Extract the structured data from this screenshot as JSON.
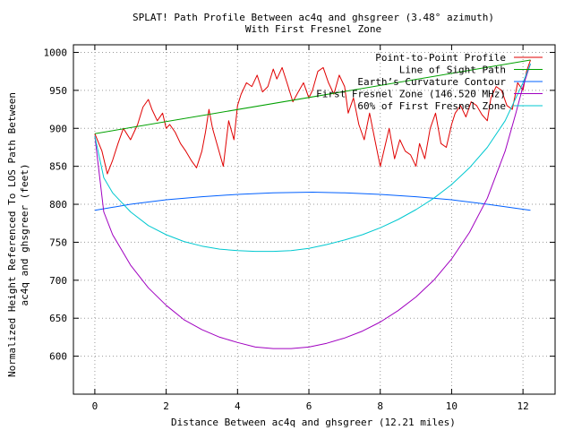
{
  "chart_data": {
    "type": "line",
    "title": "SPLAT! Path Profile Between ac4q and ghsgreer (3.48° azimuth)",
    "subtitle": "With First Fresnel Zone",
    "xlabel": "Distance Between ac4q and ghsgreer (12.21 miles)",
    "ylabel": "Normalized Height Referenced To LOS Path Between",
    "ylabel2": "ac4q and ghsgreer (feet)",
    "xlim": [
      -0.6,
      12.9
    ],
    "ylim": [
      550,
      1010
    ],
    "x_ticks": [
      0,
      2,
      4,
      6,
      8,
      10,
      12
    ],
    "y_ticks": [
      600,
      650,
      700,
      750,
      800,
      850,
      900,
      950,
      1000
    ],
    "grid": true,
    "legend_position": "top-right",
    "series": [
      {
        "name": "Point-to-Point Profile",
        "color": "#e00000",
        "x": [
          0.0,
          0.2,
          0.35,
          0.5,
          0.65,
          0.8,
          1.0,
          1.2,
          1.35,
          1.5,
          1.6,
          1.75,
          1.9,
          2.0,
          2.1,
          2.25,
          2.4,
          2.55,
          2.7,
          2.85,
          3.0,
          3.1,
          3.2,
          3.3,
          3.45,
          3.6,
          3.75,
          3.9,
          4.0,
          4.1,
          4.25,
          4.4,
          4.55,
          4.7,
          4.85,
          5.0,
          5.1,
          5.25,
          5.4,
          5.55,
          5.7,
          5.85,
          6.0,
          6.1,
          6.25,
          6.4,
          6.55,
          6.7,
          6.85,
          7.0,
          7.1,
          7.25,
          7.4,
          7.55,
          7.7,
          7.85,
          8.0,
          8.1,
          8.25,
          8.4,
          8.55,
          8.7,
          8.85,
          9.0,
          9.1,
          9.25,
          9.4,
          9.55,
          9.7,
          9.85,
          10.0,
          10.1,
          10.25,
          10.4,
          10.55,
          10.7,
          10.85,
          11.0,
          11.1,
          11.25,
          11.4,
          11.55,
          11.7,
          11.85,
          12.0,
          12.1,
          12.21
        ],
        "values": [
          893,
          870,
          840,
          858,
          880,
          900,
          885,
          905,
          928,
          938,
          925,
          910,
          920,
          900,
          905,
          895,
          880,
          870,
          858,
          848,
          870,
          895,
          925,
          900,
          875,
          850,
          910,
          885,
          930,
          945,
          960,
          955,
          970,
          948,
          955,
          978,
          965,
          980,
          958,
          935,
          948,
          960,
          940,
          950,
          975,
          980,
          960,
          945,
          970,
          955,
          920,
          940,
          905,
          885,
          920,
          885,
          850,
          870,
          900,
          860,
          885,
          870,
          865,
          850,
          880,
          860,
          900,
          920,
          880,
          875,
          905,
          920,
          930,
          915,
          935,
          930,
          918,
          910,
          940,
          955,
          950,
          930,
          925,
          960,
          950,
          975,
          990
        ]
      },
      {
        "name": "Line of Sight Path",
        "color": "#00a000",
        "x": [
          0.0,
          12.21
        ],
        "values": [
          893,
          990
        ]
      },
      {
        "name": "Earth’s Curvature Contour",
        "color": "#0060ff",
        "x": [
          0.0,
          1.0,
          2.0,
          3.0,
          4.0,
          5.0,
          6.1,
          7.0,
          8.0,
          9.0,
          10.0,
          11.0,
          12.21
        ],
        "values": [
          792,
          800,
          806,
          810,
          813,
          815,
          816,
          815,
          813,
          810,
          806,
          800,
          792
        ]
      },
      {
        "name": "First Fresnel Zone (146.520 MHz)",
        "color": "#a000c0",
        "x": [
          0.0,
          0.25,
          0.5,
          1.0,
          1.5,
          2.0,
          2.5,
          3.0,
          3.5,
          4.0,
          4.5,
          5.0,
          5.5,
          6.0,
          6.5,
          7.0,
          7.5,
          8.0,
          8.5,
          9.0,
          9.5,
          10.0,
          10.5,
          11.0,
          11.5,
          11.8,
          12.0,
          12.21
        ],
        "values": [
          890,
          790,
          760,
          720,
          690,
          667,
          648,
          635,
          625,
          618,
          612,
          610,
          610,
          612,
          617,
          624,
          633,
          645,
          660,
          678,
          700,
          728,
          763,
          808,
          870,
          920,
          955,
          985
        ]
      },
      {
        "name": "60% of First Fresnel Zone",
        "color": "#00c8d0",
        "x": [
          0.0,
          0.25,
          0.5,
          1.0,
          1.5,
          2.0,
          2.5,
          3.0,
          3.5,
          4.0,
          4.5,
          5.0,
          5.5,
          6.0,
          6.5,
          7.0,
          7.5,
          8.0,
          8.5,
          9.0,
          9.5,
          10.0,
          10.5,
          11.0,
          11.5,
          11.8,
          12.0,
          12.21
        ],
        "values": [
          890,
          835,
          815,
          790,
          772,
          760,
          751,
          745,
          741,
          739,
          738,
          738,
          739,
          742,
          747,
          753,
          760,
          769,
          780,
          793,
          808,
          826,
          848,
          875,
          910,
          940,
          960,
          985
        ]
      }
    ]
  }
}
